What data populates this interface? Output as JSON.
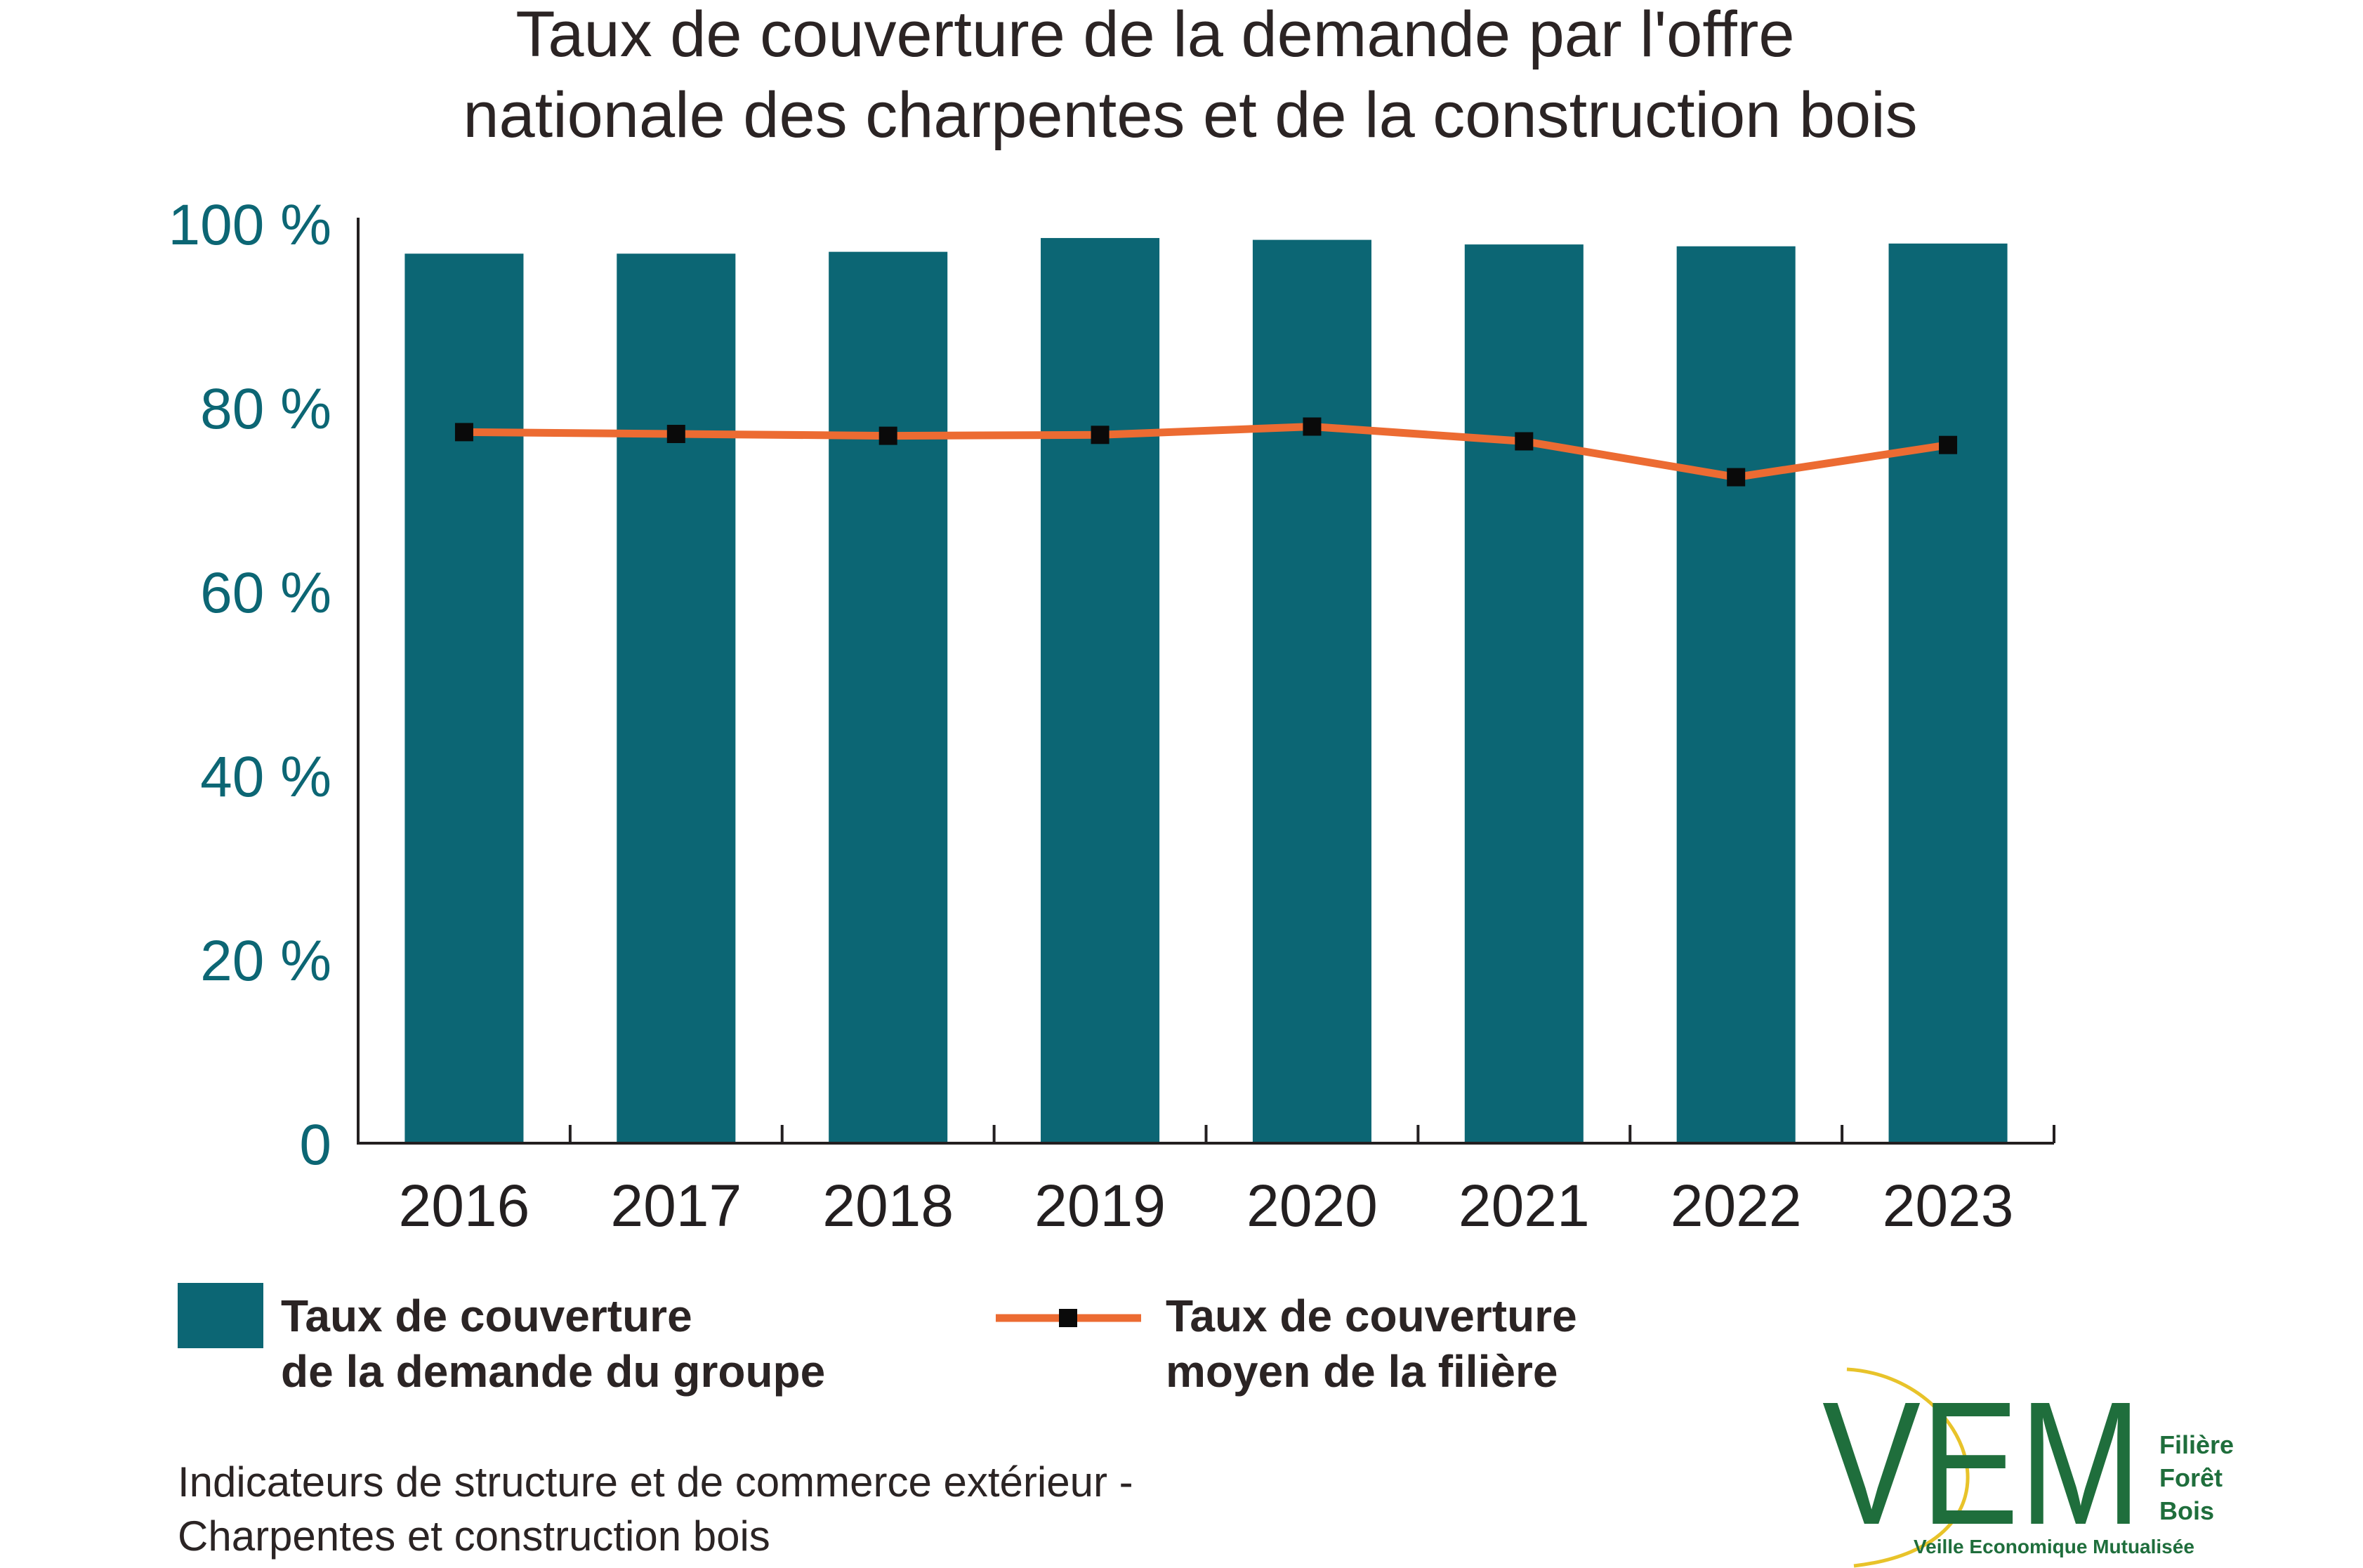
{
  "chart_data": {
    "type": "bar",
    "title": [
      "Taux de couverture de la demande par l'offre",
      "nationale des charpentes et de la construction bois"
    ],
    "categories": [
      "2016",
      "2017",
      "2018",
      "2019",
      "2020",
      "2021",
      "2022",
      "2023"
    ],
    "ylim": [
      0,
      100
    ],
    "yticks": [
      0,
      20,
      40,
      60,
      80,
      100
    ],
    "ytick_labels": [
      "0",
      "20 %",
      "40 %",
      "60 %",
      "80 %",
      "100 %"
    ],
    "grid": false,
    "legend_position": "bottom",
    "series": [
      {
        "name": "Taux de couverture de la demande du groupe",
        "name_lines": [
          "Taux de couverture",
          "de la demande du groupe"
        ],
        "type": "bar",
        "color": "#0c6674",
        "values": [
          96.7,
          96.7,
          96.9,
          98.4,
          98.2,
          97.7,
          97.5,
          97.8
        ]
      },
      {
        "name": "Taux de couverture moyen de la filière",
        "name_lines": [
          "Taux de couverture",
          "moyen de la filière"
        ],
        "type": "line",
        "color": "#ec6b32",
        "marker_color": "#0a0a0a",
        "values": [
          77.3,
          77.1,
          76.9,
          77.0,
          77.9,
          76.3,
          72.4,
          75.9
        ]
      }
    ]
  },
  "footer": {
    "lines": [
      "Indicateurs de structure et de commerce extérieur -",
      "Charpentes et construction bois"
    ]
  },
  "logo": {
    "letters": "VEM",
    "lines": [
      "Filière",
      "Forêt",
      "Bois"
    ],
    "tagline": "Veille Economique Mutualisée",
    "color": "#1f6e3c",
    "accent": "#e8c32a"
  }
}
